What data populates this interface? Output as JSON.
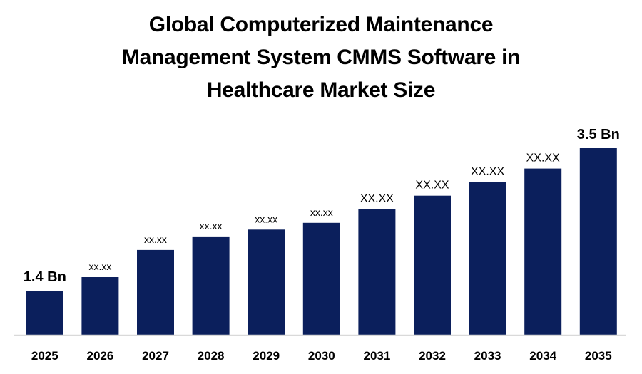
{
  "chart_title": {
    "line1": "Global Computerized Maintenance",
    "line2": "Management System CMMS Software in",
    "line3": "Healthcare Market Size"
  },
  "colors": {
    "bar": "#0b1f5c",
    "axis": "#d9d9d9",
    "text": "#000000"
  },
  "chart_data": {
    "type": "bar",
    "title": "Global Computerized Maintenance Management System CMMS Software in Healthcare Market Size",
    "xlabel": "",
    "ylabel": "",
    "categories": [
      "2025",
      "2026",
      "2027",
      "2028",
      "2029",
      "2030",
      "2031",
      "2032",
      "2033",
      "2034",
      "2035"
    ],
    "values": [
      1.4,
      1.6,
      2.0,
      2.2,
      2.3,
      2.4,
      2.6,
      2.8,
      3.0,
      3.2,
      3.5
    ],
    "data_labels": [
      "1.4 Bn",
      "xx.xx",
      "xx.xx",
      "xx.xx",
      "xx.xx",
      "xx.xx",
      "XX.XX",
      "XX.XX",
      "XX.XX",
      "XX.XX",
      "3.5 Bn"
    ],
    "ylim": [
      0.75,
      3.5
    ],
    "grid": false,
    "legend": "none"
  }
}
